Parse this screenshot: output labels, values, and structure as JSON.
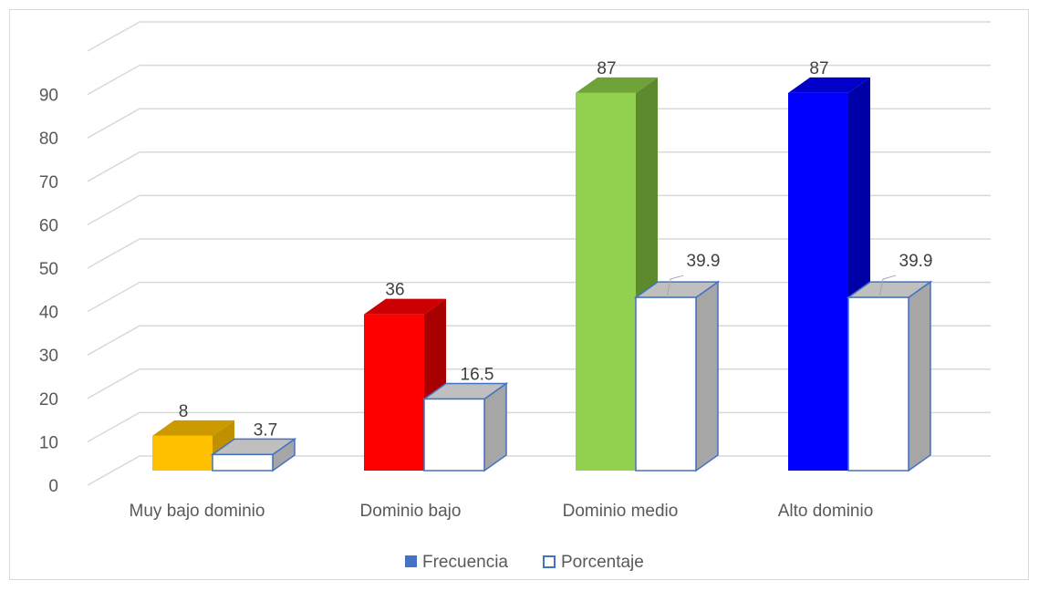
{
  "chart_data": {
    "type": "bar",
    "categories": [
      "Muy bajo dominio",
      "Dominio bajo",
      "Dominio medio",
      "Alto dominio"
    ],
    "series": [
      {
        "name": "Frecuencia",
        "values": [
          8,
          36,
          87,
          87
        ],
        "labels": [
          "8",
          "36",
          "87",
          "87"
        ],
        "colors": [
          "#FFC000",
          "#FF0000",
          "#92D050",
          "#0000FF"
        ],
        "side_colors": [
          "#BF9000",
          "#A80000",
          "#5E8A2E",
          "#0000A8"
        ],
        "top_colors": [
          "#CC9A00",
          "#CC0000",
          "#6FA33A",
          "#0000C8"
        ],
        "legend_color": "#4472C4"
      },
      {
        "name": "Porcentaje",
        "values": [
          3.7,
          16.5,
          39.9,
          39.9
        ],
        "labels": [
          "3.7",
          "16.5",
          "39.9",
          "39.9"
        ],
        "color": "#FFFFFF",
        "edge_color": "#4472C4",
        "side_color": "#A6A6A6",
        "top_color": "#BFBFBF"
      }
    ],
    "y_ticks": [
      "0",
      "10",
      "20",
      "30",
      "40",
      "50",
      "60",
      "70",
      "80",
      "90"
    ],
    "ylim": [
      0,
      100
    ],
    "grid": true,
    "legend_position": "bottom",
    "title": "",
    "xlabel": "",
    "ylabel": ""
  }
}
